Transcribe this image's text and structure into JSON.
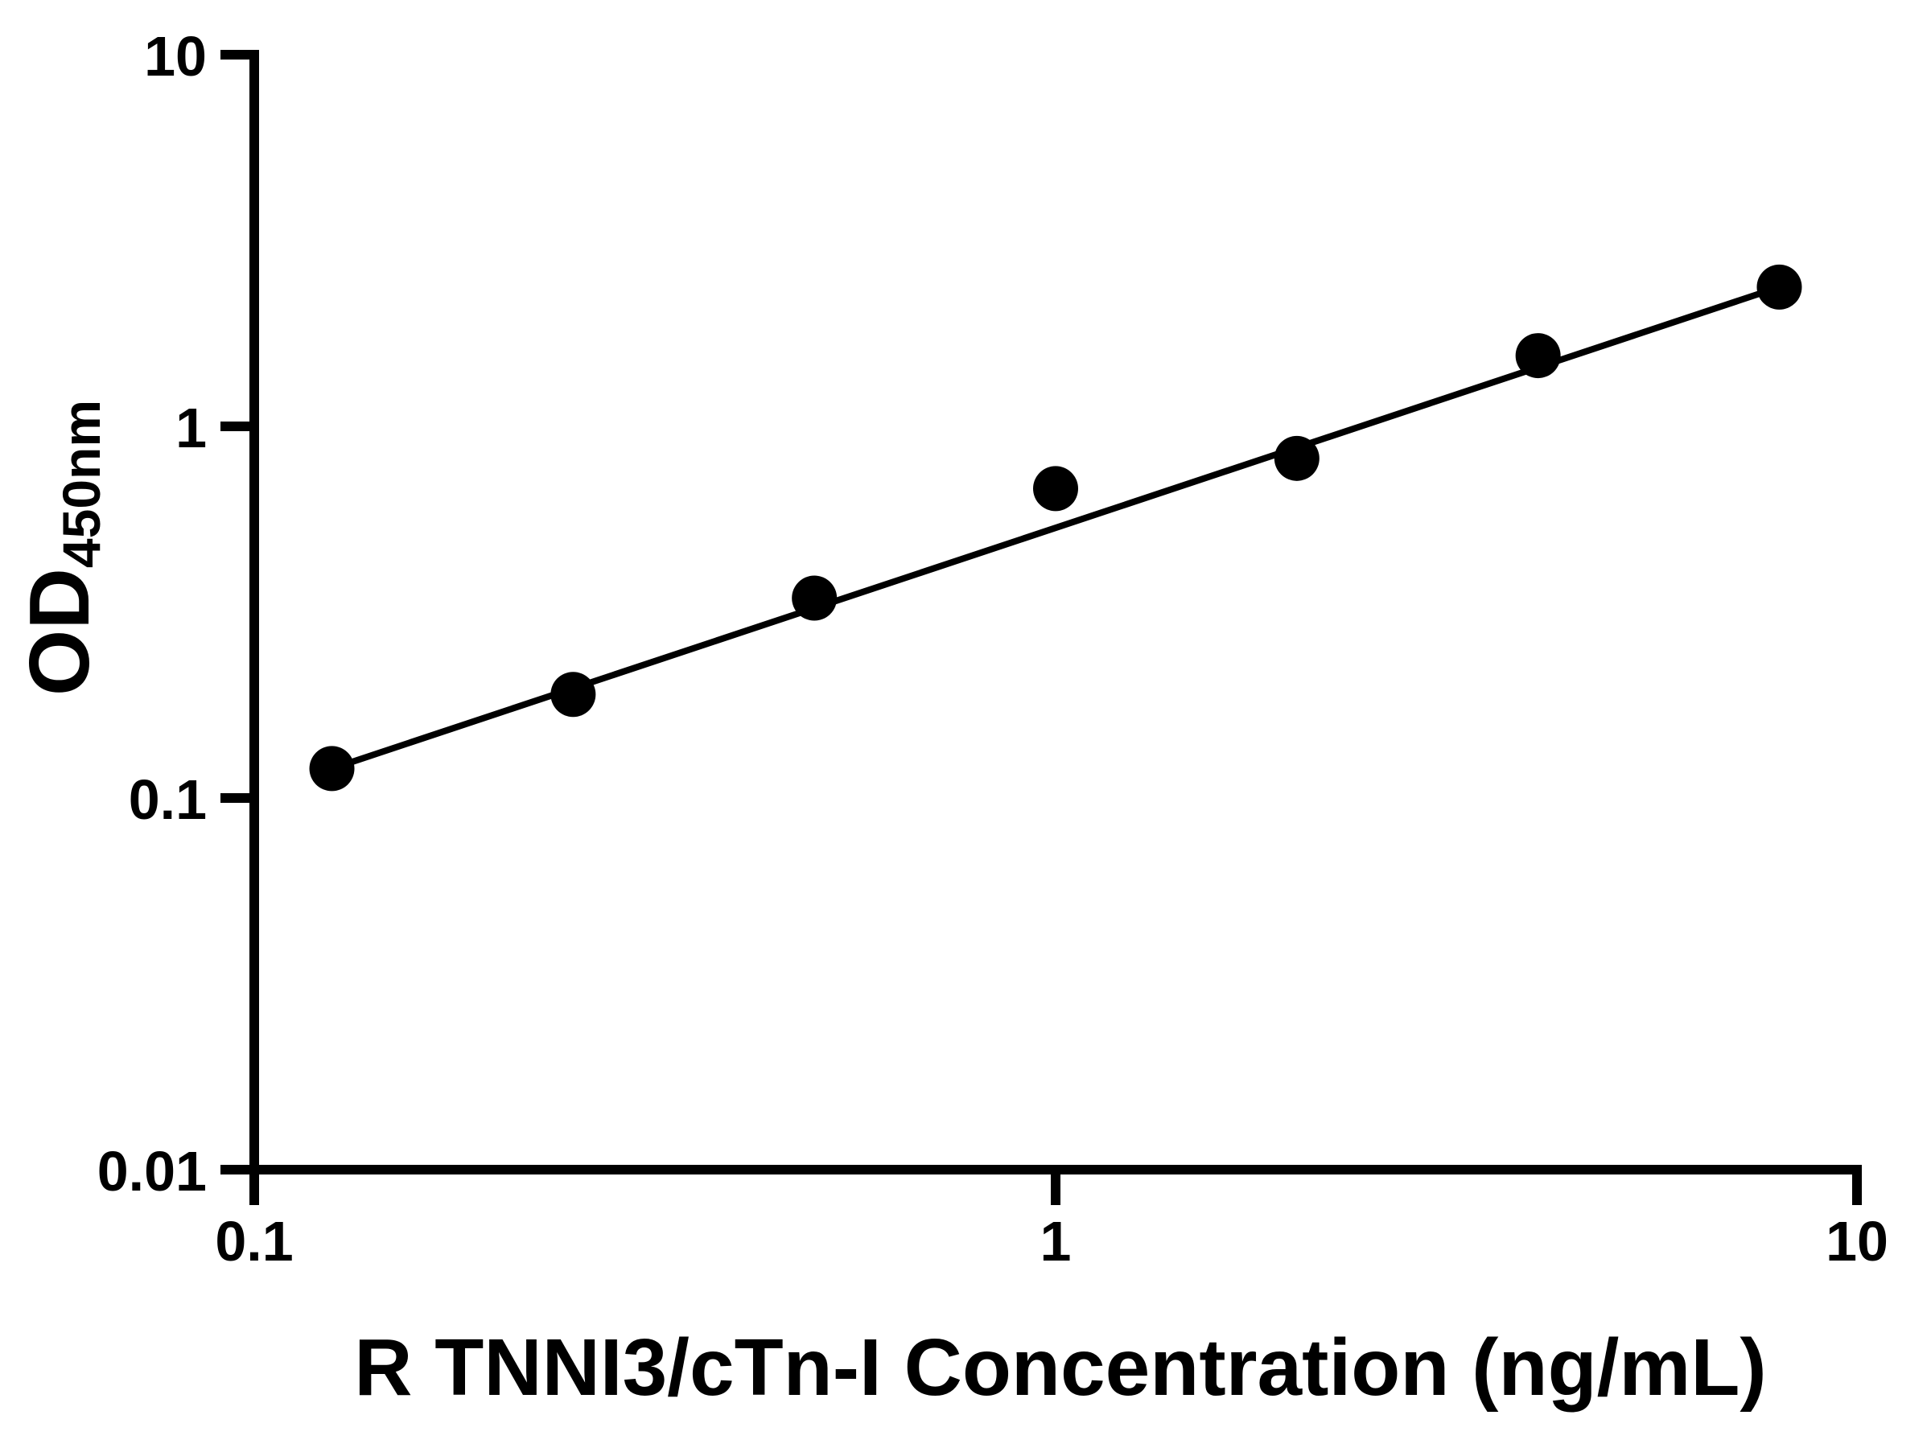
{
  "figure": {
    "background_color": "#ffffff",
    "ink_color": "#000000"
  },
  "chart_data": {
    "type": "scatter",
    "subtype": "standard-curve-with-fit-line",
    "title": "",
    "xlabel": "R TNNI3/cTn-I Concentration (ng/mL)",
    "ylabel_main": "OD",
    "ylabel_sub": "450nm",
    "x_scale": "log",
    "y_scale": "log",
    "xlim": [
      0.1,
      10
    ],
    "ylim": [
      0.01,
      10
    ],
    "grid": "off",
    "legend": "none",
    "x_ticks": [
      {
        "value": 0.1,
        "label": "0.1"
      },
      {
        "value": 1,
        "label": "1"
      },
      {
        "value": 10,
        "label": "10"
      }
    ],
    "y_ticks": [
      {
        "value": 10,
        "label": "10"
      },
      {
        "value": 1,
        "label": "1"
      },
      {
        "value": 0.1,
        "label": "0.1"
      },
      {
        "value": 0.01,
        "label": "0.01"
      }
    ],
    "series": [
      {
        "name": "standard-curve",
        "marker": "filled-circle",
        "marker_color": "#000000",
        "line_color": "#000000",
        "fit_line": "straight-first-to-last",
        "points": [
          {
            "x": 0.125,
            "y": 0.12
          },
          {
            "x": 0.25,
            "y": 0.19
          },
          {
            "x": 0.5,
            "y": 0.345
          },
          {
            "x": 1,
            "y": 0.68
          },
          {
            "x": 2,
            "y": 0.82
          },
          {
            "x": 4,
            "y": 1.55
          },
          {
            "x": 8,
            "y": 2.37
          }
        ]
      }
    ]
  }
}
